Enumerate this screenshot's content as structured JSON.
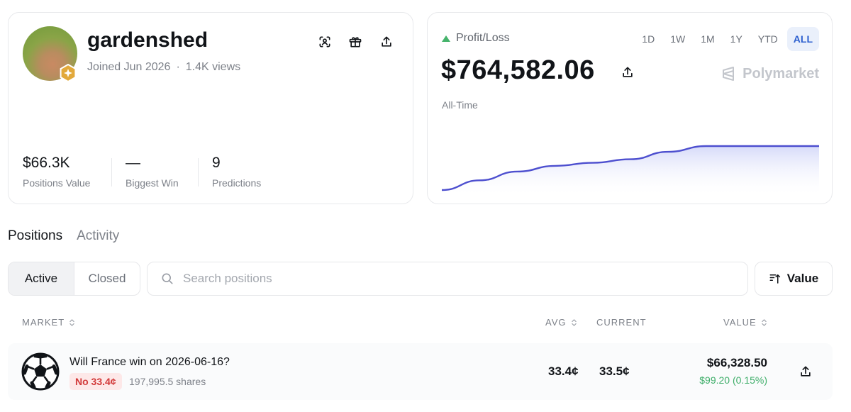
{
  "profile": {
    "username": "gardenshed",
    "joined": "Joined Jun 2026",
    "views": "1.4K views",
    "meta_separator": "·",
    "actions": [
      "scan-icon",
      "gift-icon",
      "share-icon"
    ],
    "stats": [
      {
        "value": "$66.3K",
        "label": "Positions Value"
      },
      {
        "value": "—",
        "label": "Biggest Win"
      },
      {
        "value": "9",
        "label": "Predictions"
      }
    ]
  },
  "pnl": {
    "label": "Profit/Loss",
    "value": "$764,582.06",
    "range_label": "All-Time",
    "brand": "Polymarket",
    "timeframes": [
      "1D",
      "1W",
      "1M",
      "1Y",
      "YTD",
      "ALL"
    ],
    "active_timeframe": "ALL",
    "colors": {
      "up": "#45b36b",
      "line": "#4d4fcf",
      "fill": "#dfe2fb"
    }
  },
  "chart_data": {
    "type": "area",
    "x": [
      0,
      1,
      2,
      3,
      4,
      5,
      6,
      7,
      8,
      9,
      10
    ],
    "values": [
      0.0,
      0.22,
      0.42,
      0.55,
      0.62,
      0.7,
      0.87,
      1.0,
      1.0,
      1.0,
      1.0
    ],
    "title": "",
    "xlabel": "",
    "ylabel": "",
    "grid": false
  },
  "tabs": [
    {
      "label": "Positions",
      "active": true
    },
    {
      "label": "Activity",
      "active": false
    }
  ],
  "filters": {
    "segments": [
      {
        "label": "Active",
        "active": true
      },
      {
        "label": "Closed",
        "active": false
      }
    ],
    "search_placeholder": "Search positions",
    "sort_label": "Value"
  },
  "table": {
    "headers": {
      "market": "MARKET",
      "avg": "AVG",
      "current": "CURRENT",
      "value": "VALUE"
    },
    "rows": [
      {
        "title": "Will France win on 2026-06-16?",
        "outcome": "No 33.4¢",
        "shares": "197,995.5 shares",
        "avg": "33.4¢",
        "current": "33.5¢",
        "value": "$66,328.50",
        "pnl": "$99.20 (0.15%)"
      }
    ]
  }
}
